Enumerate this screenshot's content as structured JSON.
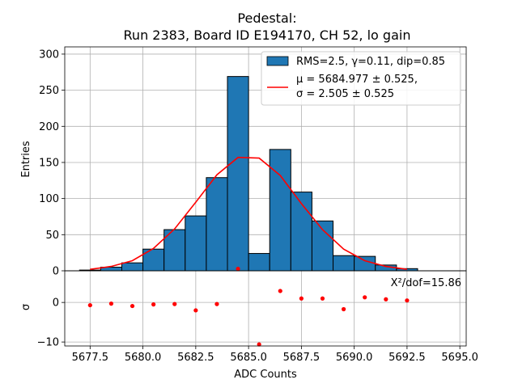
{
  "chart_data": {
    "type": "bar",
    "title_line1": "Pedestal:",
    "title_line2": "Run 2383, Board ID E194170, CH 52, lo gain",
    "xlabel": "ADC Counts",
    "ylabel_top": "Entries",
    "ylabel_bottom": "σ",
    "xlim": [
      5676.3,
      5695.3
    ],
    "ylim_top": [
      0,
      310
    ],
    "ylim_bottom": [
      -11,
      8
    ],
    "x_ticks": [
      "5677.5",
      "5680.0",
      "5682.5",
      "5685.0",
      "5687.5",
      "5690.0",
      "5692.5",
      "5695.0"
    ],
    "x_tick_values": [
      5677.5,
      5680.0,
      5682.5,
      5685.0,
      5687.5,
      5690.0,
      5692.5,
      5695.0
    ],
    "y_ticks_top": [
      "0",
      "50",
      "100",
      "150",
      "200",
      "250",
      "300"
    ],
    "y_tick_values_top": [
      0,
      50,
      100,
      150,
      200,
      250,
      300
    ],
    "y_ticks_bottom": [
      "−10",
      "0"
    ],
    "y_tick_values_bottom": [
      -10,
      0
    ],
    "grid": true,
    "legend_position": "top-right",
    "bar_color": "#1f77b4",
    "fit_color": "#ff0000",
    "histogram": {
      "name": "RMS=2.5, γ=0.11, dip=0.85",
      "bin_width": 1,
      "bin_lefts": [
        5677,
        5678,
        5679,
        5680,
        5681,
        5682,
        5683,
        5684,
        5685,
        5686,
        5687,
        5688,
        5689,
        5690,
        5691,
        5692
      ],
      "counts": [
        1,
        5,
        11,
        30,
        57,
        76,
        129,
        269,
        24,
        168,
        109,
        69,
        21,
        20,
        8,
        3
      ]
    },
    "fit": {
      "name_line1": "μ = 5684.977 ± 0.525,",
      "name_line2": "σ = 2.505 ± 0.525",
      "x": [
        5677.5,
        5678.5,
        5679.5,
        5680.5,
        5681.5,
        5682.5,
        5683.5,
        5684.5,
        5685.5,
        5686.5,
        5687.5,
        5688.5,
        5689.5,
        5690.5,
        5691.5,
        5692.5
      ],
      "y": [
        2,
        6,
        14,
        31,
        58,
        95,
        133,
        157,
        156,
        132,
        93,
        57,
        30,
        14,
        6,
        2
      ]
    },
    "residuals": {
      "x": [
        5677.5,
        5678.5,
        5679.5,
        5680.5,
        5681.5,
        5682.5,
        5683.5,
        5684.5,
        5685.5,
        5686.5,
        5687.5,
        5688.5,
        5689.5,
        5690.5,
        5691.5,
        5692.5
      ],
      "y": [
        -0.7,
        -0.3,
        -0.9,
        -0.5,
        -0.4,
        -2.0,
        -0.4,
        8.5,
        -10.6,
        2.9,
        1.0,
        1.0,
        -1.7,
        1.3,
        0.8,
        0.5
      ]
    },
    "annotation": "X²/dof=15.86"
  }
}
